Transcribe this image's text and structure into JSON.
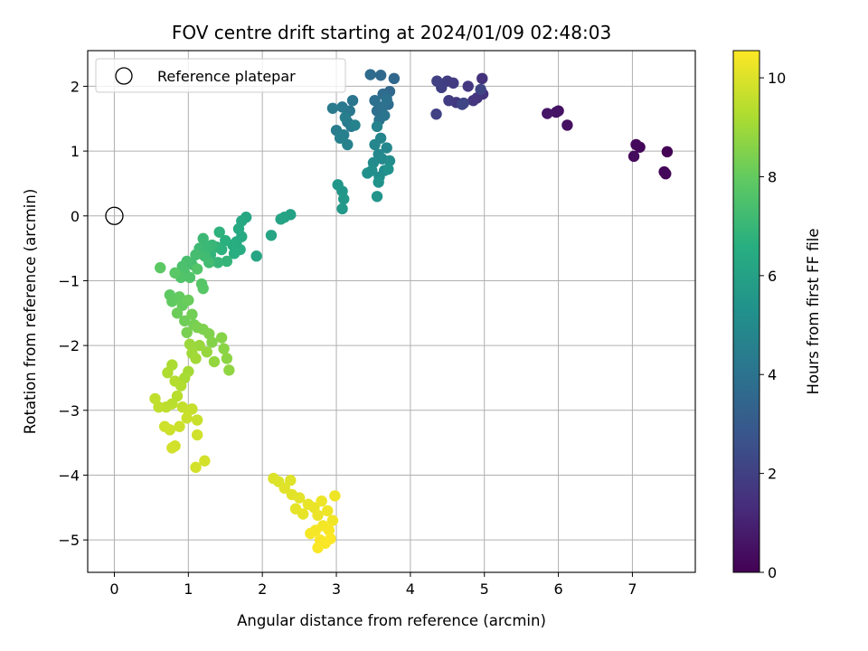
{
  "chart_data": {
    "type": "scatter",
    "title": "FOV centre drift starting at 2024/01/09 02:48:03",
    "xlabel": "Angular distance from reference (arcmin)",
    "ylabel": "Rotation from reference (arcmin)",
    "xlim": [
      -0.36,
      7.85
    ],
    "ylim": [
      -5.5,
      2.55
    ],
    "x_ticks": [
      0,
      1,
      2,
      3,
      4,
      5,
      6,
      7
    ],
    "y_ticks": [
      -5,
      -4,
      -3,
      -2,
      -1,
      0,
      1,
      2
    ],
    "x_tick_labels": [
      "0",
      "1",
      "2",
      "3",
      "4",
      "5",
      "6",
      "7"
    ],
    "y_tick_labels": [
      "−5",
      "−4",
      "−3",
      "−2",
      "−1",
      "0",
      "1",
      "2"
    ],
    "grid": true,
    "colormap": "viridis",
    "colorbar": {
      "label": "Hours from first FF file",
      "range": [
        0,
        10.55
      ],
      "ticks": [
        0,
        2,
        4,
        6,
        8,
        10
      ],
      "tick_labels": [
        "0",
        "2",
        "4",
        "6",
        "8",
        "10"
      ]
    },
    "legend": {
      "position": "upper-left",
      "entries": [
        {
          "label": "Reference platepar",
          "marker": "open-circle"
        }
      ]
    },
    "reference_point": {
      "x": 0,
      "y": 0
    },
    "series": [
      {
        "columns": [
          "x",
          "y",
          "hours"
        ],
        "points": [
          [
            7.47,
            0.99,
            0.05
          ],
          [
            7.45,
            0.65,
            0.1
          ],
          [
            7.43,
            0.68,
            0.15
          ],
          [
            7.1,
            1.06,
            0.2
          ],
          [
            7.05,
            1.1,
            0.25
          ],
          [
            7.02,
            0.92,
            0.3
          ],
          [
            6.12,
            1.4,
            0.45
          ],
          [
            6.0,
            1.62,
            0.5
          ],
          [
            5.97,
            1.6,
            0.55
          ],
          [
            5.85,
            1.58,
            0.6
          ],
          [
            4.97,
            2.12,
            1.5
          ],
          [
            4.98,
            1.88,
            1.55
          ],
          [
            4.9,
            1.82,
            1.6
          ],
          [
            4.85,
            1.78,
            1.65
          ],
          [
            4.78,
            2.0,
            1.7
          ],
          [
            4.62,
            1.75,
            1.75
          ],
          [
            4.58,
            2.05,
            1.8
          ],
          [
            4.5,
            2.08,
            1.85
          ],
          [
            4.52,
            1.78,
            1.9
          ],
          [
            4.42,
            1.98,
            1.95
          ],
          [
            4.36,
            2.08,
            2.0
          ],
          [
            4.35,
            1.57,
            2.05
          ],
          [
            4.72,
            1.74,
            2.1
          ],
          [
            4.95,
            1.95,
            2.15
          ],
          [
            4.7,
            1.72,
            2.2
          ],
          [
            3.78,
            2.12,
            3.5
          ],
          [
            3.72,
            1.92,
            3.55
          ],
          [
            3.6,
            2.17,
            3.6
          ],
          [
            3.46,
            2.18,
            3.65
          ],
          [
            3.63,
            1.88,
            3.7
          ],
          [
            3.7,
            1.72,
            3.75
          ],
          [
            3.55,
            1.62,
            3.8
          ],
          [
            3.52,
            1.78,
            3.85
          ],
          [
            3.62,
            1.68,
            3.9
          ],
          [
            3.68,
            1.8,
            3.95
          ],
          [
            3.58,
            1.48,
            4.0
          ],
          [
            3.65,
            1.55,
            4.05
          ],
          [
            3.22,
            1.78,
            4.1
          ],
          [
            3.18,
            1.62,
            4.15
          ],
          [
            3.15,
            1.45,
            4.2
          ],
          [
            3.08,
            1.68,
            4.25
          ],
          [
            2.95,
            1.66,
            4.3
          ],
          [
            3.2,
            1.38,
            4.35
          ],
          [
            3.0,
            1.32,
            4.4
          ],
          [
            3.12,
            1.52,
            4.45
          ],
          [
            3.1,
            1.25,
            4.5
          ],
          [
            3.05,
            1.2,
            4.55
          ],
          [
            3.15,
            1.1,
            4.6
          ],
          [
            3.25,
            1.4,
            4.65
          ],
          [
            3.55,
            1.38,
            4.7
          ],
          [
            3.6,
            1.2,
            4.75
          ],
          [
            3.52,
            1.1,
            4.8
          ],
          [
            3.68,
            1.05,
            4.85
          ],
          [
            3.57,
            0.95,
            4.9
          ],
          [
            3.62,
            0.88,
            4.95
          ],
          [
            3.5,
            0.82,
            5.0
          ],
          [
            3.72,
            0.85,
            5.05
          ],
          [
            3.65,
            0.7,
            5.1
          ],
          [
            3.58,
            0.6,
            5.15
          ],
          [
            3.48,
            0.7,
            5.2
          ],
          [
            3.42,
            0.66,
            5.25
          ],
          [
            3.7,
            0.72,
            5.3
          ],
          [
            3.57,
            0.52,
            5.35
          ],
          [
            3.55,
            0.3,
            5.4
          ],
          [
            3.02,
            0.48,
            5.5
          ],
          [
            3.08,
            0.38,
            5.55
          ],
          [
            3.1,
            0.26,
            5.6
          ],
          [
            3.08,
            0.11,
            5.65
          ],
          [
            2.38,
            0.02,
            6.0
          ],
          [
            2.3,
            -0.02,
            6.05
          ],
          [
            2.25,
            -0.05,
            6.1
          ],
          [
            2.12,
            -0.3,
            6.15
          ],
          [
            1.92,
            -0.62,
            6.2
          ],
          [
            1.78,
            -0.02,
            6.25
          ],
          [
            1.72,
            -0.08,
            6.3
          ],
          [
            1.68,
            -0.2,
            6.35
          ],
          [
            1.72,
            -0.32,
            6.4
          ],
          [
            1.65,
            -0.4,
            6.45
          ],
          [
            1.7,
            -0.52,
            6.5
          ],
          [
            1.6,
            -0.45,
            6.55
          ],
          [
            1.62,
            -0.58,
            6.6
          ],
          [
            1.5,
            -0.38,
            6.65
          ],
          [
            1.45,
            -0.52,
            6.7
          ],
          [
            1.42,
            -0.25,
            6.75
          ],
          [
            1.38,
            -0.48,
            6.8
          ],
          [
            1.3,
            -0.6,
            6.85
          ],
          [
            1.52,
            -0.7,
            6.9
          ],
          [
            1.4,
            -0.72,
            6.95
          ],
          [
            1.32,
            -0.45,
            7.0
          ],
          [
            1.25,
            -0.5,
            7.05
          ],
          [
            1.2,
            -0.35,
            7.1
          ],
          [
            1.15,
            -0.5,
            7.15
          ],
          [
            1.22,
            -0.62,
            7.2
          ],
          [
            1.28,
            -0.72,
            7.25
          ],
          [
            1.1,
            -0.6,
            7.3
          ],
          [
            1.05,
            -0.75,
            7.35
          ],
          [
            0.98,
            -0.7,
            7.4
          ],
          [
            0.92,
            -0.78,
            7.45
          ],
          [
            0.95,
            -0.88,
            7.5
          ],
          [
            1.02,
            -0.95,
            7.55
          ],
          [
            0.9,
            -0.95,
            7.6
          ],
          [
            1.12,
            -0.82,
            7.65
          ],
          [
            1.18,
            -1.05,
            7.7
          ],
          [
            1.2,
            -1.12,
            7.75
          ],
          [
            0.82,
            -0.88,
            7.8
          ],
          [
            0.62,
            -0.8,
            7.85
          ],
          [
            0.75,
            -1.22,
            7.9
          ],
          [
            0.78,
            -1.32,
            7.95
          ],
          [
            0.88,
            -1.25,
            8.0
          ],
          [
            0.92,
            -1.38,
            8.05
          ],
          [
            1.0,
            -1.3,
            8.1
          ],
          [
            0.85,
            -1.5,
            8.15
          ],
          [
            0.95,
            -1.62,
            8.2
          ],
          [
            1.05,
            -1.52,
            8.25
          ],
          [
            1.08,
            -1.68,
            8.3
          ],
          [
            0.98,
            -1.8,
            8.35
          ],
          [
            1.12,
            -1.72,
            8.4
          ],
          [
            1.2,
            -1.75,
            8.45
          ],
          [
            1.28,
            -1.82,
            8.5
          ],
          [
            1.32,
            -1.95,
            8.55
          ],
          [
            1.45,
            -1.88,
            8.6
          ],
          [
            1.48,
            -2.05,
            8.65
          ],
          [
            1.52,
            -2.2,
            8.7
          ],
          [
            1.55,
            -2.38,
            8.75
          ],
          [
            1.35,
            -2.25,
            8.8
          ],
          [
            1.25,
            -2.1,
            8.85
          ],
          [
            1.15,
            -2.0,
            8.9
          ],
          [
            1.02,
            -1.98,
            8.95
          ],
          [
            1.05,
            -2.12,
            9.0
          ],
          [
            1.1,
            -2.2,
            9.05
          ],
          [
            1.0,
            -2.4,
            9.1
          ],
          [
            0.95,
            -2.5,
            9.15
          ],
          [
            0.78,
            -2.3,
            9.2
          ],
          [
            0.72,
            -2.42,
            9.25
          ],
          [
            0.9,
            -2.62,
            9.3
          ],
          [
            0.82,
            -2.55,
            9.35
          ],
          [
            0.85,
            -2.78,
            9.4
          ],
          [
            0.78,
            -2.9,
            9.45
          ],
          [
            0.7,
            -2.95,
            9.5
          ],
          [
            0.6,
            -2.95,
            9.52
          ],
          [
            0.55,
            -2.82,
            9.55
          ],
          [
            0.92,
            -2.95,
            9.6
          ],
          [
            1.0,
            -3.0,
            9.62
          ],
          [
            1.05,
            -2.98,
            9.65
          ],
          [
            1.12,
            -3.15,
            9.68
          ],
          [
            0.98,
            -3.12,
            9.7
          ],
          [
            0.88,
            -3.25,
            9.72
          ],
          [
            0.75,
            -3.3,
            9.75
          ],
          [
            0.68,
            -3.25,
            9.78
          ],
          [
            1.12,
            -3.38,
            9.8
          ],
          [
            0.82,
            -3.55,
            9.82
          ],
          [
            0.78,
            -3.58,
            9.84
          ],
          [
            1.22,
            -3.78,
            9.86
          ],
          [
            1.1,
            -3.88,
            9.88
          ],
          [
            2.15,
            -4.05,
            10.0
          ],
          [
            2.22,
            -4.1,
            10.02
          ],
          [
            2.38,
            -4.08,
            10.05
          ],
          [
            2.3,
            -4.2,
            10.08
          ],
          [
            2.4,
            -4.3,
            10.1
          ],
          [
            2.5,
            -4.35,
            10.12
          ],
          [
            2.45,
            -4.52,
            10.15
          ],
          [
            2.55,
            -4.6,
            10.18
          ],
          [
            2.62,
            -4.45,
            10.2
          ],
          [
            2.7,
            -4.5,
            10.22
          ],
          [
            2.75,
            -4.62,
            10.25
          ],
          [
            2.8,
            -4.4,
            10.28
          ],
          [
            2.88,
            -4.55,
            10.3
          ],
          [
            2.98,
            -4.32,
            10.32
          ],
          [
            2.95,
            -4.7,
            10.35
          ],
          [
            2.82,
            -4.78,
            10.38
          ],
          [
            2.72,
            -4.85,
            10.4
          ],
          [
            2.65,
            -4.9,
            10.42
          ],
          [
            2.9,
            -4.85,
            10.44
          ],
          [
            2.78,
            -5.0,
            10.46
          ],
          [
            2.85,
            -5.05,
            10.48
          ],
          [
            2.75,
            -5.12,
            10.5
          ],
          [
            2.92,
            -4.98,
            10.52
          ]
        ]
      }
    ]
  }
}
